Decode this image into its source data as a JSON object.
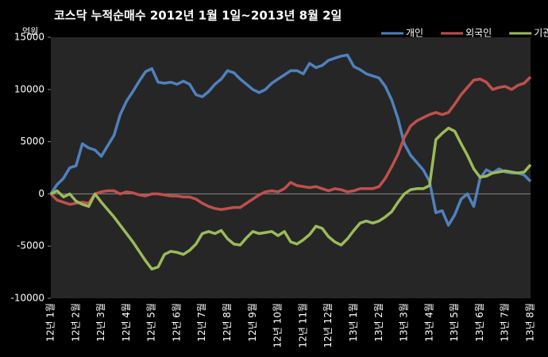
{
  "chart_data": {
    "type": "line",
    "title": "코스닥 누적순매수 2012년 1월 1일~2013년 8월 2일",
    "y_unit": "억원",
    "categories": [
      "12년 1월",
      null,
      null,
      null,
      "12년 2월",
      null,
      null,
      null,
      "12년 3월",
      null,
      null,
      null,
      "12년 4월",
      null,
      null,
      null,
      "12년 5월",
      null,
      null,
      null,
      "12년 6월",
      null,
      null,
      null,
      "12년 7월",
      null,
      null,
      null,
      "12년 8월",
      null,
      null,
      null,
      "12년 9월",
      null,
      null,
      null,
      "12년 10월",
      null,
      null,
      null,
      "12년 11월",
      null,
      null,
      null,
      "12년 12월",
      null,
      null,
      null,
      "13년 1월",
      null,
      null,
      null,
      "13년 2월",
      null,
      null,
      null,
      "13년 3월",
      null,
      null,
      null,
      "13년 4월",
      null,
      null,
      null,
      "13년 5월",
      null,
      null,
      null,
      "13년 6월",
      null,
      null,
      null,
      "13년 7월",
      null,
      null,
      null,
      "13년 8월"
    ],
    "series": [
      {
        "name": "개인",
        "color": "#4f81bd",
        "values": [
          0,
          900,
          1500,
          2500,
          2700,
          4800,
          4400,
          4200,
          3600,
          4600,
          5600,
          7600,
          8900,
          9800,
          10800,
          11700,
          12000,
          10700,
          10600,
          10700,
          10500,
          10800,
          10500,
          9500,
          9300,
          9800,
          10500,
          11000,
          11800,
          11600,
          11000,
          10500,
          10000,
          9700,
          10000,
          10600,
          11000,
          11400,
          11800,
          11800,
          11500,
          12500,
          12100,
          12300,
          12800,
          13000,
          13200,
          13300,
          12200,
          11900,
          11500,
          11300,
          11100,
          10300,
          9000,
          7200,
          4800,
          3700,
          3000,
          2300,
          1200,
          -1800,
          -1600,
          -3000,
          -2000,
          -500,
          0,
          -1200,
          1500,
          2300,
          2000,
          2400,
          2100,
          2000,
          2000,
          1800,
          1200
        ]
      },
      {
        "name": "외국인",
        "color": "#c0504d",
        "values": [
          0,
          -600,
          -800,
          -1000,
          -900,
          -800,
          -900,
          0,
          200,
          300,
          300,
          0,
          200,
          100,
          -100,
          -200,
          0,
          0,
          -100,
          -200,
          -200,
          -300,
          -300,
          -500,
          -900,
          -1200,
          -1400,
          -1500,
          -1400,
          -1300,
          -1300,
          -900,
          -500,
          -100,
          200,
          300,
          200,
          500,
          1100,
          800,
          700,
          600,
          700,
          500,
          300,
          500,
          400,
          200,
          300,
          500,
          500,
          500,
          700,
          1500,
          2600,
          3800,
          5400,
          6500,
          7000,
          7300,
          7600,
          7800,
          7600,
          7800,
          8600,
          9500,
          10200,
          10900,
          11000,
          10700,
          10000,
          10200,
          10300,
          10000,
          10400,
          10600,
          11200
        ]
      },
      {
        "name": "기관",
        "color": "#9bbb59",
        "values": [
          0,
          300,
          -300,
          0,
          -700,
          -1000,
          -1200,
          0,
          -800,
          -1500,
          -2200,
          -3000,
          -3800,
          -4600,
          -5500,
          -6400,
          -7200,
          -7000,
          -5800,
          -5500,
          -5600,
          -5800,
          -5400,
          -4800,
          -3800,
          -3600,
          -3800,
          -3500,
          -4300,
          -4800,
          -4900,
          -4200,
          -3600,
          -3800,
          -3700,
          -3600,
          -4000,
          -3600,
          -4600,
          -4800,
          -4400,
          -3900,
          -3100,
          -3300,
          -4100,
          -4600,
          -4900,
          -4300,
          -3500,
          -2800,
          -2600,
          -2800,
          -2600,
          -2200,
          -1700,
          -800,
          0,
          400,
          500,
          500,
          800,
          5200,
          5800,
          6300,
          6000,
          4800,
          3700,
          2400,
          1600,
          1700,
          2000,
          2100,
          2200,
          2100,
          2000,
          2100,
          2800
        ]
      }
    ],
    "ylim": [
      -10000,
      15000
    ],
    "yticks": [
      -10000,
      -5000,
      0,
      5000,
      10000,
      15000
    ],
    "grid": false,
    "legend": "top-right",
    "background": "#000000",
    "plot_background": "#262626"
  }
}
